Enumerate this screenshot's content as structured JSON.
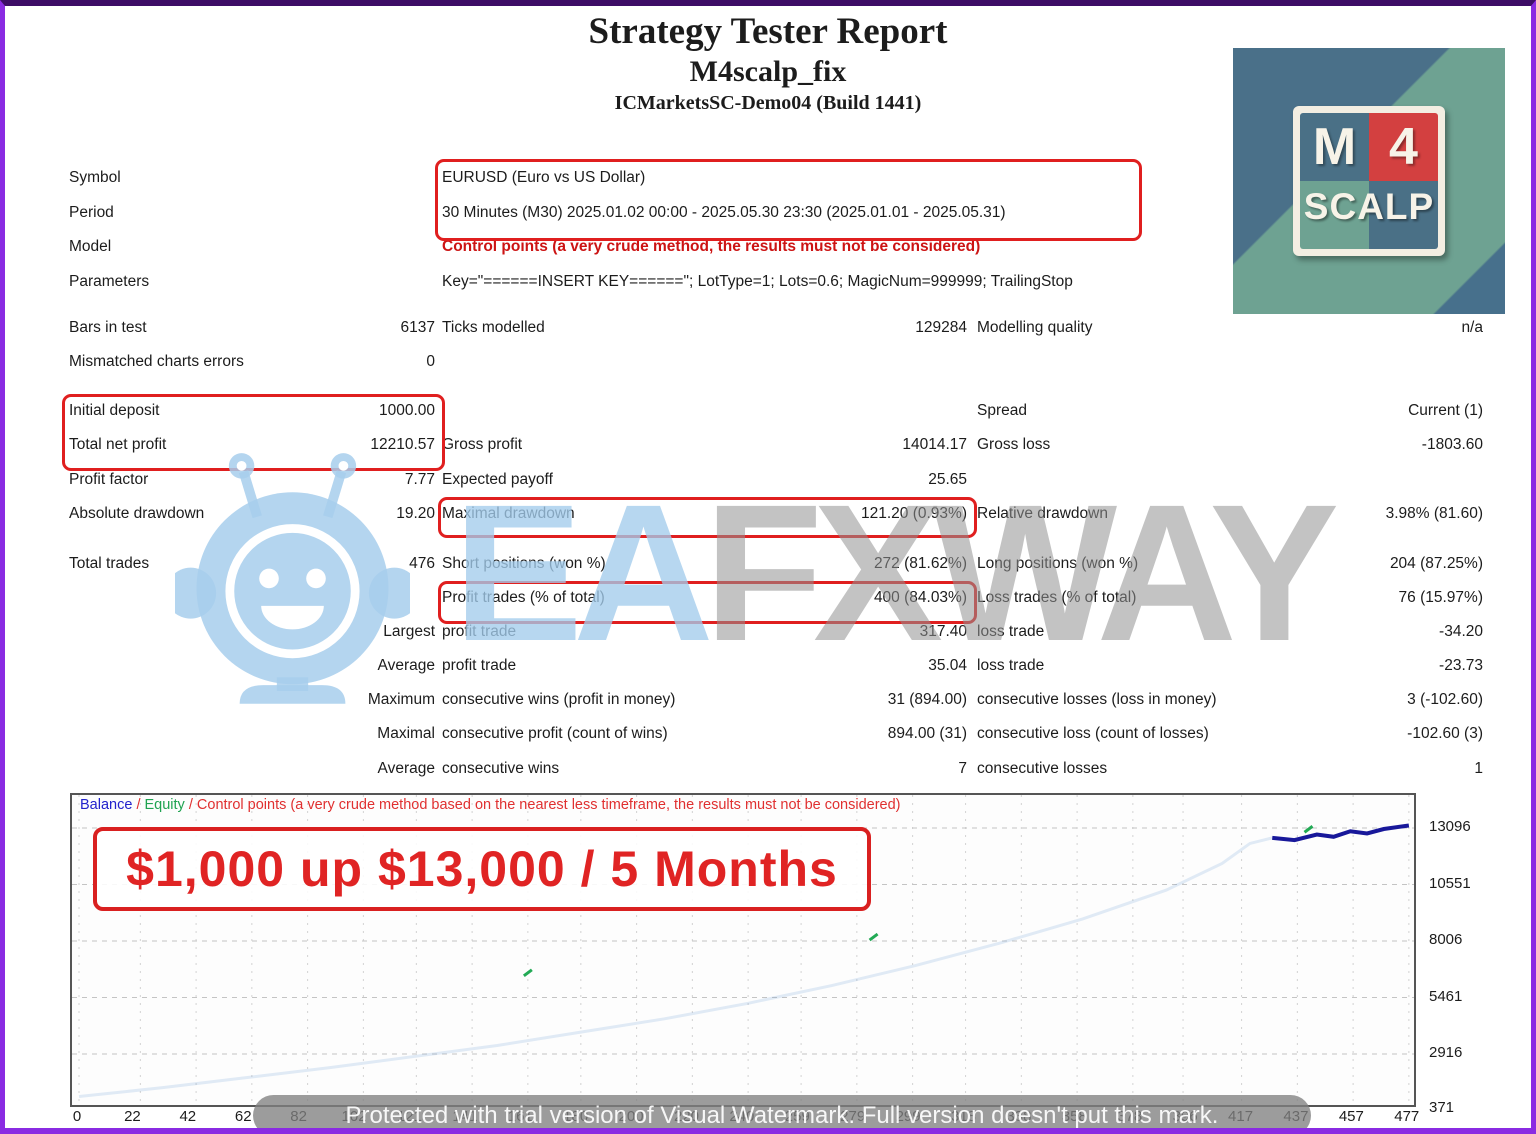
{
  "header": {
    "title": "Strategy Tester Report",
    "subtitle": "M4scalp_fix",
    "server": "ICMarketsSC-Demo04 (Build 1441)"
  },
  "logo": {
    "m": "M",
    "four": "4",
    "scalp": "SCALP"
  },
  "info": {
    "symbol_label": "Symbol",
    "symbol_value": "EURUSD (Euro vs US Dollar)",
    "period_label": "Period",
    "period_value": "30 Minutes (M30) 2025.01.02 00:00 - 2025.05.30 23:30 (2025.01.01 - 2025.05.31)",
    "model_label": "Model",
    "model_value": "Control points (a very crude method, the results must not be considered)",
    "parameters_label": "Parameters",
    "parameters_value": "Key=\"======INSERT KEY======\"; LotType=1; Lots=0.6; MagicNum=999999; TrailingStop"
  },
  "stats": {
    "rows": [
      {
        "l1": "Bars in test",
        "v1": "6137",
        "l2": "Ticks modelled",
        "v2": "129284",
        "l3": "Modelling quality",
        "v3": "n/a"
      },
      {
        "l1": "Mismatched charts errors",
        "v1": "0"
      },
      {
        "l1": "Initial deposit",
        "v1": "1000.00",
        "l3": "Spread",
        "v3": "Current (1)"
      },
      {
        "l1": "Total net profit",
        "v1": "12210.57",
        "l2": "Gross profit",
        "v2": "14014.17",
        "l3": "Gross loss",
        "v3": "-1803.60"
      },
      {
        "l1": "Profit factor",
        "v1": "7.77",
        "l2": "Expected payoff",
        "v2": "25.65"
      },
      {
        "l1": "Absolute drawdown",
        "v1": "19.20",
        "l2": "Maximal drawdown",
        "v2": "121.20 (0.93%)",
        "l3": "Relative drawdown",
        "v3": "3.98% (81.60)"
      },
      {
        "l1": "Total trades",
        "v1": "476",
        "l2": "Short positions (won %)",
        "v2": "272 (81.62%)",
        "l3": "Long positions (won %)",
        "v3": "204 (87.25%)"
      },
      {
        "l2": "Profit trades (% of total)",
        "v2": "400 (84.03%)",
        "l3": "Loss trades (% of total)",
        "v3": "76 (15.97%)"
      },
      {
        "v1": "Largest",
        "l2": "profit trade",
        "v2": "317.40",
        "l3": "loss trade",
        "v3": "-34.20"
      },
      {
        "v1": "Average",
        "l2": "profit trade",
        "v2": "35.04",
        "l3": "loss trade",
        "v3": "-23.73"
      },
      {
        "v1": "Maximum",
        "l2": "consecutive wins (profit in money)",
        "v2": "31 (894.00)",
        "l3": "consecutive losses (loss in money)",
        "v3": "3 (-102.60)"
      },
      {
        "v1": "Maximal",
        "l2": "consecutive profit (count of wins)",
        "v2": "894.00 (31)",
        "l3": "consecutive loss (count of losses)",
        "v3": "-102.60 (3)"
      },
      {
        "v1": "Average",
        "l2": "consecutive wins",
        "v2": "7",
        "l3": "consecutive losses",
        "v3": "1"
      }
    ]
  },
  "chart": {
    "legend": {
      "balance": "Balance",
      "equity": "Equity",
      "separator": "/",
      "note": "Control points (a very crude method based on the nearest less timeframe, the results must not be considered)"
    },
    "banner": "$1,000 up $13,000 / 5 Months",
    "y_labels": [
      "13096",
      "10551",
      "8006",
      "5461",
      "2916",
      "371"
    ],
    "x_labels": [
      "0",
      "22",
      "42",
      "62",
      "82",
      "102",
      "121",
      "141",
      "161",
      "180",
      "200",
      "220",
      "240",
      "259",
      "279",
      "299",
      "318",
      "338",
      "358",
      "378",
      "396",
      "417",
      "437",
      "457",
      "477"
    ]
  },
  "chart_data": {
    "type": "line",
    "y_gridline_values": [
      13096,
      10551,
      8006,
      5461,
      2916
    ],
    "y_axis_range": [
      371,
      13096
    ],
    "x_tick_values": [
      0,
      22,
      42,
      62,
      82,
      102,
      121,
      141,
      161,
      180,
      200,
      220,
      240,
      259,
      279,
      299,
      318,
      338,
      358,
      378,
      396,
      417,
      437,
      457,
      477
    ],
    "series": [
      {
        "name": "Balance",
        "color_faint": "rgba(110,160,215,0.20)",
        "color_dark": "#18189a",
        "points": [
          [
            0,
            1000
          ],
          [
            30,
            1400
          ],
          [
            60,
            1850
          ],
          [
            90,
            2300
          ],
          [
            120,
            2800
          ],
          [
            150,
            3300
          ],
          [
            180,
            3900
          ],
          [
            210,
            4500
          ],
          [
            240,
            5200
          ],
          [
            270,
            6000
          ],
          [
            300,
            6900
          ],
          [
            330,
            7900
          ],
          [
            360,
            9000
          ],
          [
            390,
            10300
          ],
          [
            410,
            11500
          ],
          [
            420,
            12400
          ],
          [
            428,
            12650
          ],
          [
            436,
            12550
          ],
          [
            444,
            12800
          ],
          [
            450,
            12700
          ],
          [
            456,
            12950
          ],
          [
            462,
            12850
          ],
          [
            468,
            13050
          ],
          [
            477,
            13210
          ]
        ],
        "dark_from_x": 428
      }
    ],
    "equity_marks": {
      "color": "#22aa55",
      "points": [
        [
          161,
          6574
        ],
        [
          285,
          8182
        ],
        [
          441,
          13040
        ]
      ]
    }
  },
  "watermark": {
    "brand_blue": "EA",
    "brand_gray": "FXWAY",
    "footer": "Protected with trial version of Visual Watermark. Full version doesn't put this mark."
  },
  "colors": {
    "border_purple": "#8a2be2",
    "box_red": "#e01f1f",
    "model_red": "#cc1414",
    "banner_red": "#e02424",
    "legend_blue": "#2222cc",
    "legend_green": "#1fa351",
    "logo_blue": "#4a7086",
    "logo_green": "#6ea292",
    "logo_red": "#d34040"
  }
}
